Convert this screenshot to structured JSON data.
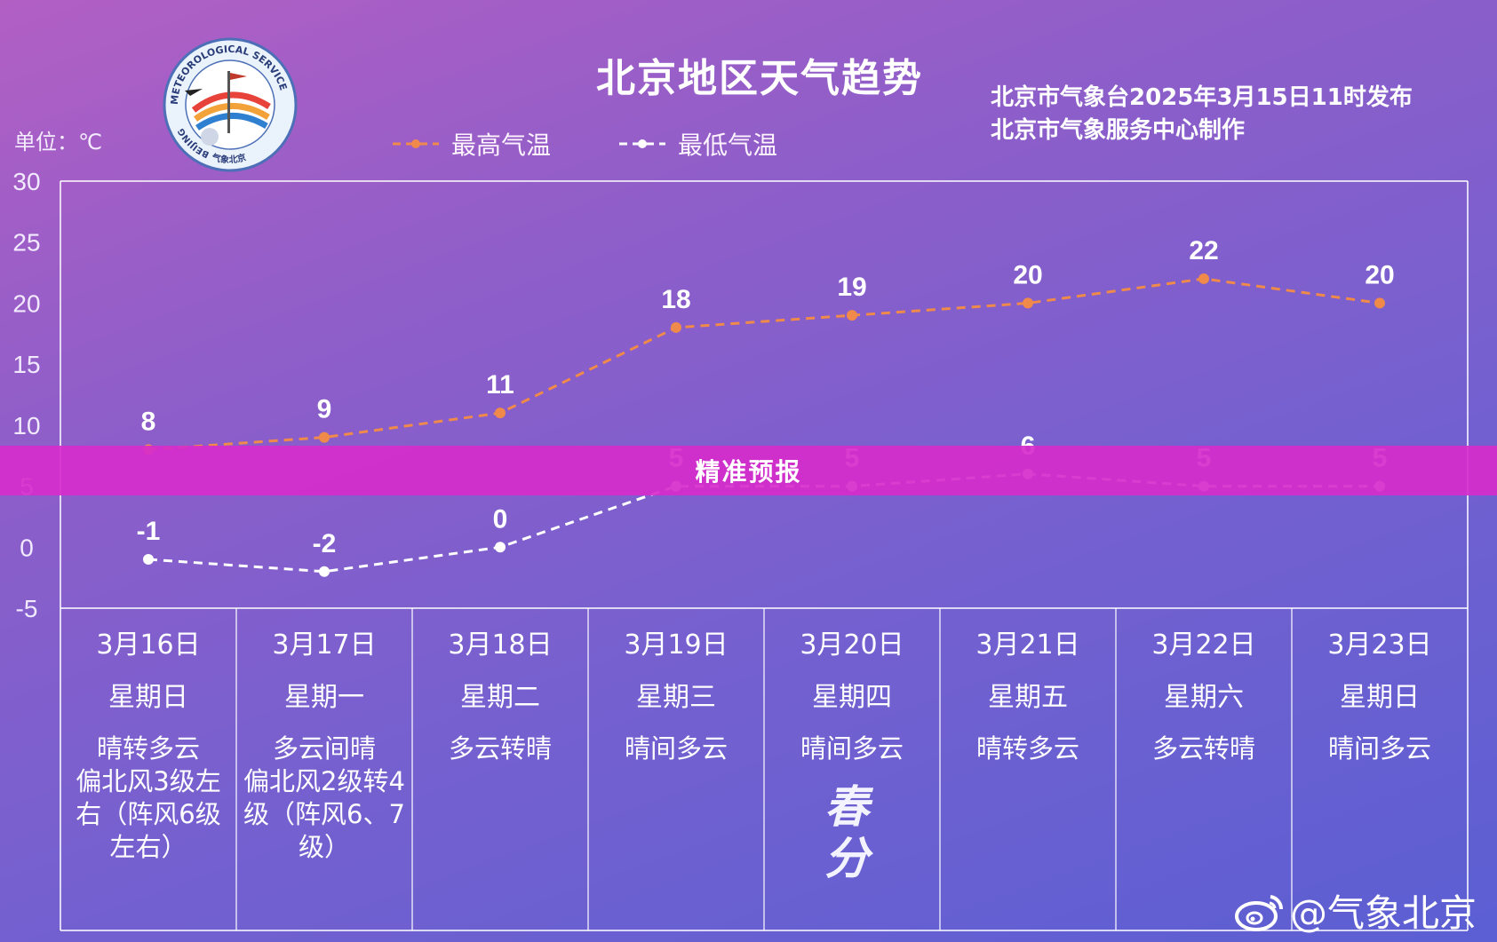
{
  "header": {
    "title": "北京地区天气趋势",
    "publisher_line1": "北京市气象台2025年3月15日11时发布",
    "publisher_line2": "北京市气象服务中心制作",
    "unit": "单位：℃"
  },
  "logo": {
    "ring_text_top": "METEOROLOGICAL SERVICE",
    "ring_text_left": "BEIJING",
    "ring_text_bottom": "气象北京"
  },
  "banner": {
    "text": "精准预报"
  },
  "watermark": {
    "text": "@气象北京",
    "icon": "weibo-icon"
  },
  "solar_term": {
    "text": "春分",
    "day_index": 4
  },
  "colors": {
    "high": "#f08a4a",
    "low": "#ffffff",
    "grid": "#ffffff",
    "banner": "#d62dcb"
  },
  "chart_data": {
    "type": "line",
    "title": "北京地区天气趋势",
    "ylabel": "单位：℃",
    "ylim": [
      -5,
      30
    ],
    "yticks": [
      30,
      25,
      20,
      15,
      10,
      5,
      0,
      -5
    ],
    "categories": [
      "3月16日",
      "3月17日",
      "3月18日",
      "3月19日",
      "3月20日",
      "3月21日",
      "3月22日",
      "3月23日"
    ],
    "legend_position": "top",
    "series": [
      {
        "name": "最高气温",
        "values": [
          8,
          9,
          11,
          18,
          19,
          20,
          22,
          20
        ],
        "color": "#f08a4a",
        "style": "dashed"
      },
      {
        "name": "最低气温",
        "values": [
          -1,
          -2,
          0,
          5,
          5,
          6,
          5,
          5
        ],
        "color": "#ffffff",
        "style": "dashed"
      }
    ],
    "days": [
      {
        "date": "3月16日",
        "weekday": "星期日",
        "weather": [
          "晴转多云",
          "偏北风3级左",
          "右（阵风6级",
          "左右）"
        ]
      },
      {
        "date": "3月17日",
        "weekday": "星期一",
        "weather": [
          "多云间晴",
          "偏北风2级转4",
          "级（阵风6、7",
          "级）"
        ]
      },
      {
        "date": "3月18日",
        "weekday": "星期二",
        "weather": [
          "多云转晴"
        ]
      },
      {
        "date": "3月19日",
        "weekday": "星期三",
        "weather": [
          "晴间多云"
        ]
      },
      {
        "date": "3月20日",
        "weekday": "星期四",
        "weather": [
          "晴间多云"
        ]
      },
      {
        "date": "3月21日",
        "weekday": "星期五",
        "weather": [
          "晴转多云"
        ]
      },
      {
        "date": "3月22日",
        "weekday": "星期六",
        "weather": [
          "多云转晴"
        ]
      },
      {
        "date": "3月23日",
        "weekday": "星期日",
        "weather": [
          "晴间多云"
        ]
      }
    ]
  }
}
